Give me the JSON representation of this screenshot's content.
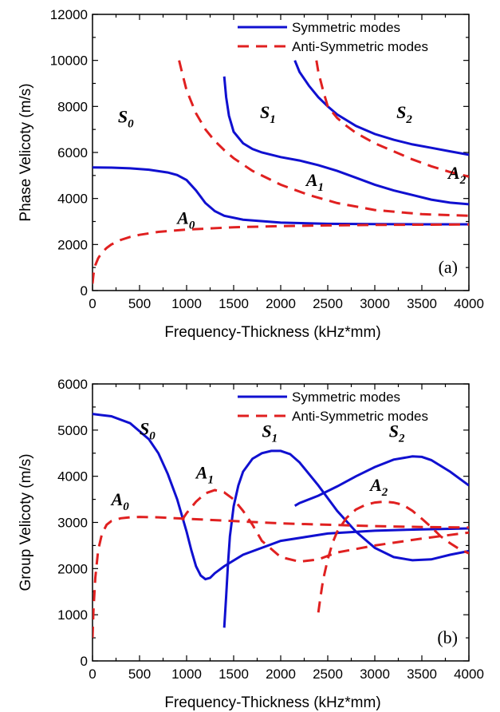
{
  "colors": {
    "symmetric": "#1010d0",
    "anti_symmetric": "#e02020"
  },
  "chart_data": [
    {
      "type": "line",
      "panel_label": "(a)",
      "xlabel": "Frequency-Thickness (kHz*mm)",
      "ylabel": "Phase Velicoty (m/s)",
      "xlim": [
        0,
        4000
      ],
      "ylim": [
        0,
        12000
      ],
      "xticks": [
        "0",
        "500",
        "1000",
        "1500",
        "2000",
        "2500",
        "3000",
        "3500",
        "4000"
      ],
      "yticks": [
        "0",
        "2000",
        "4000",
        "6000",
        "8000",
        "10000",
        "12000"
      ],
      "legend": {
        "position": "top-right",
        "entries": [
          "Symmetric modes",
          "Anti-Symmetric modes"
        ]
      },
      "series": [
        {
          "mode": "S0",
          "kind": "symmetric",
          "x": [
            0,
            200,
            400,
            600,
            800,
            900,
            1000,
            1100,
            1200,
            1300,
            1400,
            1600,
            2000,
            2500,
            3000,
            3500,
            4000
          ],
          "y": [
            5350,
            5340,
            5310,
            5250,
            5130,
            5020,
            4800,
            4350,
            3800,
            3450,
            3250,
            3080,
            2950,
            2900,
            2890,
            2880,
            2880
          ]
        },
        {
          "mode": "S1",
          "kind": "symmetric",
          "x": [
            1400,
            1420,
            1450,
            1500,
            1600,
            1700,
            1800,
            2000,
            2200,
            2400,
            2600,
            2800,
            3000,
            3200,
            3400,
            3600,
            3800,
            4000
          ],
          "y": [
            9300,
            8400,
            7600,
            6900,
            6400,
            6150,
            6000,
            5800,
            5650,
            5450,
            5200,
            4900,
            4600,
            4350,
            4150,
            3950,
            3820,
            3750
          ]
        },
        {
          "mode": "S2",
          "kind": "symmetric",
          "x": [
            2150,
            2200,
            2300,
            2400,
            2500,
            2600,
            2800,
            3000,
            3200,
            3400,
            3600,
            3800,
            4000
          ],
          "y": [
            10000,
            9500,
            8900,
            8400,
            8000,
            7650,
            7150,
            6800,
            6550,
            6350,
            6200,
            6050,
            5900
          ]
        },
        {
          "mode": "A0",
          "kind": "anti",
          "x": [
            0,
            10,
            30,
            60,
            100,
            150,
            200,
            300,
            400,
            500,
            700,
            1000,
            1500,
            2000,
            2500,
            3000,
            3500,
            4000
          ],
          "y": [
            300,
            700,
            1100,
            1400,
            1650,
            1850,
            2000,
            2200,
            2330,
            2420,
            2550,
            2650,
            2750,
            2800,
            2830,
            2850,
            2860,
            2870
          ]
        },
        {
          "mode": "A1",
          "kind": "anti",
          "x": [
            920,
            950,
            1000,
            1100,
            1200,
            1300,
            1400,
            1500,
            1700,
            2000,
            2300,
            2600,
            3000,
            3500,
            4000
          ],
          "y": [
            10000,
            9500,
            8700,
            7700,
            7000,
            6500,
            6100,
            5750,
            5200,
            4600,
            4150,
            3800,
            3500,
            3320,
            3250
          ]
        },
        {
          "mode": "A2",
          "kind": "anti",
          "x": [
            2380,
            2400,
            2450,
            2500,
            2600,
            2700,
            2800,
            3000,
            3200,
            3400,
            3600,
            3800,
            4000
          ],
          "y": [
            10000,
            9500,
            8700,
            8000,
            7500,
            7150,
            6850,
            6400,
            6050,
            5700,
            5400,
            5150,
            4950
          ]
        }
      ],
      "mode_labels": [
        {
          "base": "S",
          "sub": "0",
          "x": 270,
          "y": 7300
        },
        {
          "base": "S",
          "sub": "1",
          "x": 1780,
          "y": 7500
        },
        {
          "base": "S",
          "sub": "2",
          "x": 3230,
          "y": 7500
        },
        {
          "base": "A",
          "sub": "0",
          "x": 900,
          "y": 2900
        },
        {
          "base": "A",
          "sub": "1",
          "x": 2270,
          "y": 4550
        },
        {
          "base": "A",
          "sub": "2",
          "x": 3780,
          "y": 4850
        }
      ]
    },
    {
      "type": "line",
      "panel_label": "(b)",
      "xlabel": "Frequency-Thickness (kHz*mm)",
      "ylabel": "Group Velicoty (m/s)",
      "xlim": [
        0,
        4000
      ],
      "ylim": [
        0,
        6000
      ],
      "xticks": [
        "0",
        "500",
        "1000",
        "1500",
        "2000",
        "2500",
        "3000",
        "3500",
        "4000"
      ],
      "yticks": [
        "0",
        "1000",
        "2000",
        "3000",
        "4000",
        "5000",
        "6000"
      ],
      "legend": {
        "position": "top-right",
        "entries": [
          "Symmetric modes",
          "Anti-Symmetric modes"
        ]
      },
      "series": [
        {
          "mode": "S0",
          "kind": "symmetric",
          "x": [
            0,
            200,
            400,
            600,
            700,
            800,
            900,
            1000,
            1050,
            1100,
            1150,
            1200,
            1250,
            1300,
            1400,
            1600,
            2000,
            2500,
            3000,
            3500,
            4000
          ],
          "y": [
            5350,
            5300,
            5150,
            4800,
            4500,
            4050,
            3500,
            2800,
            2400,
            2050,
            1850,
            1770,
            1800,
            1900,
            2050,
            2300,
            2600,
            2760,
            2820,
            2850,
            2870
          ]
        },
        {
          "mode": "S1",
          "kind": "symmetric",
          "x": [
            1400,
            1420,
            1440,
            1460,
            1500,
            1550,
            1600,
            1700,
            1800,
            1900,
            2000,
            2100,
            2200,
            2400,
            2600,
            2800,
            3000,
            3200,
            3400,
            3600,
            3800,
            4000
          ],
          "y": [
            720,
            1400,
            2100,
            2700,
            3350,
            3800,
            4100,
            4380,
            4500,
            4550,
            4550,
            4480,
            4300,
            3800,
            3250,
            2800,
            2450,
            2250,
            2180,
            2200,
            2300,
            2380
          ]
        },
        {
          "mode": "S2",
          "kind": "symmetric",
          "x": [
            2150,
            2200,
            2400,
            2600,
            2800,
            3000,
            3200,
            3400,
            3500,
            3600,
            3800,
            4000
          ],
          "y": [
            3360,
            3420,
            3580,
            3780,
            4000,
            4200,
            4360,
            4430,
            4420,
            4350,
            4100,
            3800
          ]
        },
        {
          "mode": "A0",
          "kind": "anti",
          "x": [
            0,
            10,
            30,
            60,
            100,
            150,
            200,
            300,
            400,
            500,
            700,
            1000,
            1500,
            2000,
            2500,
            3000,
            3500,
            4000
          ],
          "y": [
            500,
            1100,
            1800,
            2400,
            2750,
            2950,
            3030,
            3090,
            3110,
            3120,
            3110,
            3080,
            3030,
            2980,
            2950,
            2920,
            2900,
            2890
          ]
        },
        {
          "mode": "A1",
          "kind": "anti",
          "x": [
            950,
            1000,
            1100,
            1200,
            1300,
            1400,
            1500,
            1600,
            1700,
            1800,
            2000,
            2200,
            2400,
            2600,
            3000,
            3500,
            4000
          ],
          "y": [
            3050,
            3200,
            3450,
            3630,
            3700,
            3650,
            3500,
            3250,
            2950,
            2600,
            2250,
            2150,
            2200,
            2350,
            2500,
            2650,
            2780
          ]
        },
        {
          "mode": "A2",
          "kind": "anti",
          "x": [
            2400,
            2420,
            2450,
            2500,
            2550,
            2600,
            2700,
            2800,
            2900,
            3000,
            3100,
            3200,
            3300,
            3400,
            3500,
            3600,
            3700,
            3800,
            3900,
            4000
          ],
          "y": [
            1050,
            1350,
            1750,
            2200,
            2550,
            2800,
            3100,
            3280,
            3380,
            3430,
            3450,
            3430,
            3380,
            3250,
            3080,
            2900,
            2700,
            2550,
            2420,
            2330
          ]
        }
      ],
      "mode_labels": [
        {
          "base": "S",
          "sub": "0",
          "x": 500,
          "y": 4900
        },
        {
          "base": "S",
          "sub": "1",
          "x": 1800,
          "y": 4850
        },
        {
          "base": "S",
          "sub": "2",
          "x": 3150,
          "y": 4850
        },
        {
          "base": "A",
          "sub": "0",
          "x": 200,
          "y": 3370
        },
        {
          "base": "A",
          "sub": "1",
          "x": 1100,
          "y": 3950
        },
        {
          "base": "A",
          "sub": "2",
          "x": 2950,
          "y": 3680
        }
      ]
    }
  ]
}
